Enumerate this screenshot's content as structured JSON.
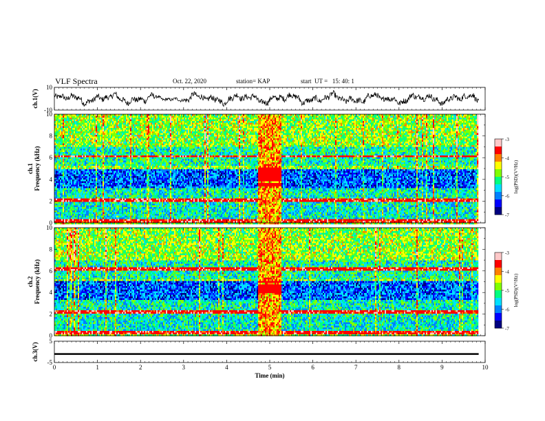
{
  "header": {
    "title": "VLF Spectra",
    "date": "Oct. 22, 2020",
    "station": "station= KAP",
    "start": "start  UT =   15: 40: 1"
  },
  "chart_data": {
    "type": "heatmap",
    "x_axis": {
      "label": "Time (min)",
      "range": [
        0,
        10
      ],
      "ticks": [
        "0",
        "1",
        "2",
        "3",
        "4",
        "5",
        "6",
        "7",
        "8",
        "9",
        "10"
      ]
    },
    "panels": [
      {
        "type": "line",
        "ylabel": "ch.1(V)",
        "ylim": [
          -10,
          10
        ],
        "yticks": [
          "10",
          "-10"
        ],
        "description_free": true,
        "x_extent_min": [
          0,
          9.85
        ],
        "typical_range_V": [
          -6,
          6
        ]
      },
      {
        "type": "heatmap",
        "ylabel_top": "ch.1",
        "ylabel": "Frequency (kHz)",
        "ylim": [
          0,
          10
        ],
        "yticks": [
          "0",
          "2",
          "4",
          "6",
          "8",
          "10"
        ],
        "colorbar": {
          "label": "log(PSD)(V²/Hz)",
          "range": [
            -7,
            -3
          ],
          "ticks": [
            "-3",
            "-4",
            "-5",
            "-6",
            "-7"
          ]
        },
        "x_extent_min": [
          0,
          9.85
        ],
        "bands_kHz": [
          [
            3.3,
            5.0
          ],
          [
            0.5,
            1.8
          ]
        ],
        "burst_min": [
          4.7,
          5.25
        ]
      },
      {
        "type": "heatmap",
        "ylabel_top": "ch.2",
        "ylabel": "Frequency (kHz)",
        "ylim": [
          0,
          10
        ],
        "yticks": [
          "0",
          "2",
          "4",
          "6",
          "8",
          "10"
        ],
        "colorbar": {
          "label": "log(PSD)(V²/Hz)",
          "range": [
            -7,
            -3
          ],
          "ticks": [
            "-3",
            "-4",
            "-5",
            "-6",
            "-7"
          ]
        },
        "x_extent_min": [
          0,
          9.85
        ],
        "bands_kHz": [
          [
            3.3,
            5.0
          ],
          [
            0.5,
            1.8
          ]
        ],
        "burst_min": [
          4.7,
          5.25
        ]
      },
      {
        "type": "line",
        "ylabel": "ch.3(V)",
        "ylim": [
          -5,
          5
        ],
        "yticks": [
          "5",
          "-5"
        ],
        "x_extent_min": [
          0,
          9.85
        ],
        "band_V": [
          -1.4,
          -0.6
        ]
      }
    ],
    "colormap": [
      "#000080",
      "#0000ff",
      "#0080ff",
      "#00e0ff",
      "#00ff80",
      "#80ff00",
      "#ffff00",
      "#ff8000",
      "#ff0000",
      "#ffc8c8"
    ]
  }
}
